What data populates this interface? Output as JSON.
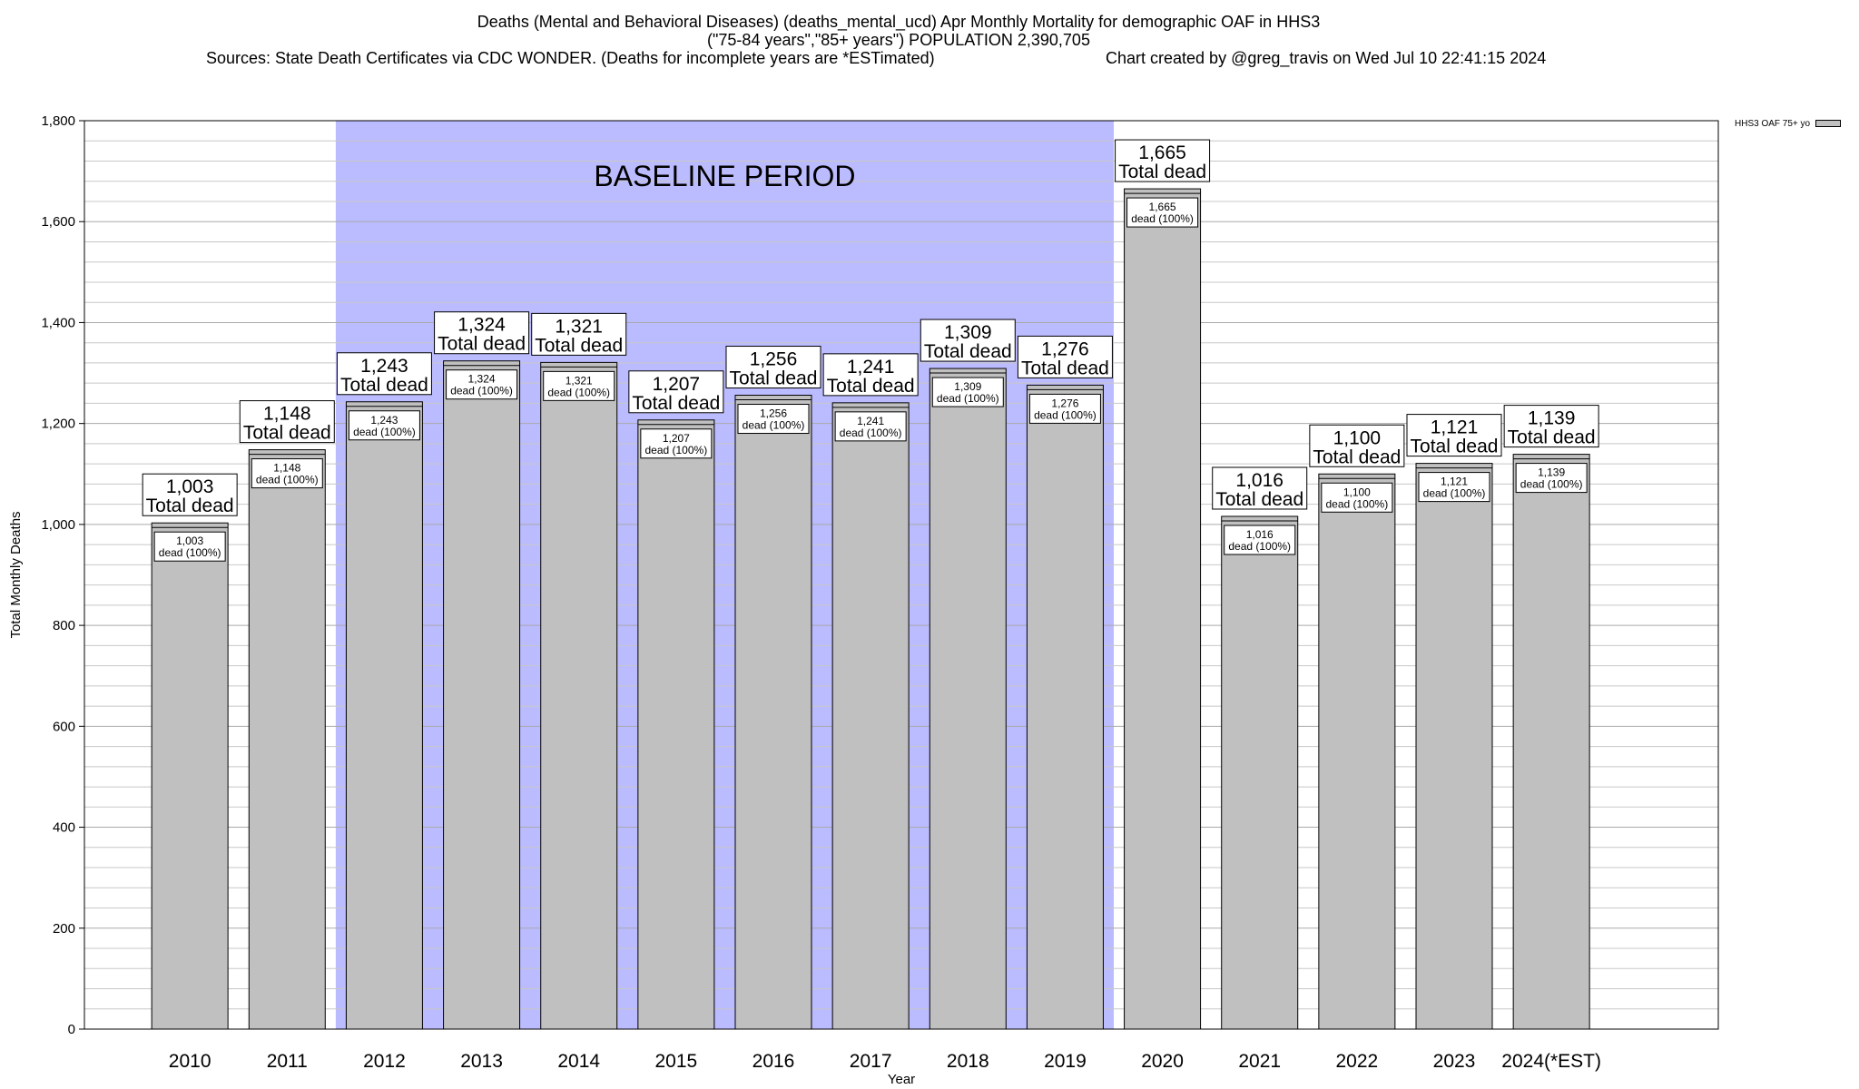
{
  "header": {
    "line1": "Deaths (Mental and Behavioral Diseases) (deaths_mental_ucd) Apr Monthly Mortality for demographic OAF in HHS3",
    "line2": "(\"75-84 years\",\"85+ years\") POPULATION 2,390,705",
    "line3": "Sources: State Death Certificates via CDC WONDER. (Deaths for incomplete years are *ESTimated)",
    "line4": "Chart created by @greg_travis on Wed Jul 10 22:41:15 2024"
  },
  "legend": {
    "label": "HHS3 OAF 75+ yo"
  },
  "colors": {
    "bar": "#c0c0c0",
    "baseline": "#bbbbff",
    "grid": "#c8c8c8"
  },
  "chart_data": {
    "type": "bar",
    "title": "Deaths (Mental and Behavioral Diseases) (deaths_mental_ucd) Apr Monthly Mortality for demographic OAF in HHS3",
    "xlabel": "Year",
    "ylabel": "Total Monthly Deaths",
    "ylim": [
      0,
      1800
    ],
    "yticks": [
      0,
      200,
      400,
      600,
      800,
      1000,
      1200,
      1400,
      1600,
      1800
    ],
    "ytick_labels": [
      "0",
      "200",
      "400",
      "600",
      "800",
      "1,000",
      "1,200",
      "1,400",
      "1,600",
      "1,800"
    ],
    "grid": true,
    "legend_position": "top-right",
    "categories": [
      "2010",
      "2011",
      "2012",
      "2013",
      "2014",
      "2015",
      "2016",
      "2017",
      "2018",
      "2019",
      "2020",
      "2021",
      "2022",
      "2023",
      "2024(*EST)"
    ],
    "series": [
      {
        "name": "HHS3 OAF 75+ yo",
        "values": [
          1003,
          1148,
          1243,
          1324,
          1321,
          1207,
          1256,
          1241,
          1309,
          1276,
          1665,
          1016,
          1100,
          1121,
          1139
        ]
      }
    ],
    "top_labels": [
      "1,003",
      "1,148",
      "1,243",
      "1,324",
      "1,321",
      "1,207",
      "1,256",
      "1,241",
      "1,309",
      "1,276",
      "1,665",
      "1,016",
      "1,100",
      "1,121",
      "1,139"
    ],
    "top_suffix": "Total dead",
    "inner_suffix": "dead (100%)",
    "baseline": {
      "label": "BASELINE PERIOD",
      "from": "2012",
      "to": "2019"
    }
  }
}
